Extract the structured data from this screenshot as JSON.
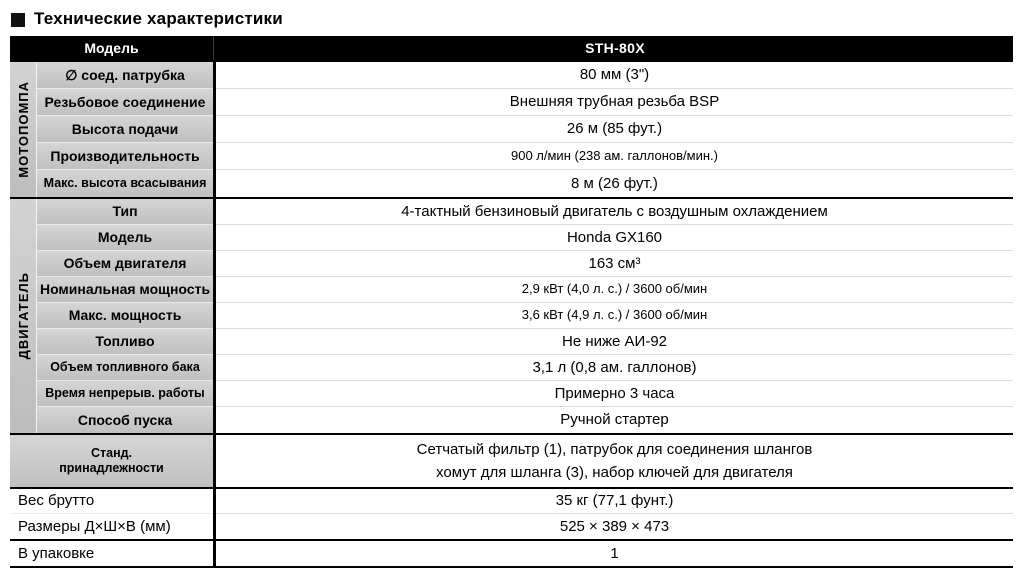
{
  "title": "Технические характеристики",
  "table": {
    "header": {
      "model_label": "Модель",
      "model_value": "STH-80X"
    },
    "sections": [
      {
        "group": "МОТОПОМПА",
        "rows": [
          {
            "label": "∅ соед. патрубка",
            "value": "80 мм (3\")"
          },
          {
            "label": "Резьбовое соединение",
            "value": "Внешняя трубная резьба BSP"
          },
          {
            "label": "Высота подачи",
            "value": "26 м (85 фут.)"
          },
          {
            "label": "Производительность",
            "value": "900 л/мин (238 ам. галлонов/мин.)",
            "small": true
          },
          {
            "label": "Макс. высота всасывания",
            "value": "8 м (26 фут.)"
          }
        ]
      },
      {
        "group": "ДВИГАТЕЛЬ",
        "rows": [
          {
            "label": "Тип",
            "value": "4-тактный бензиновый двигатель с воздушным охлаждением"
          },
          {
            "label": "Модель",
            "value": "Honda GX160"
          },
          {
            "label": "Объем двигателя",
            "value": "163 см³"
          },
          {
            "label": "Номинальная мощность",
            "value": "2,9 кВт (4,0 л. с.) / 3600 об/мин",
            "small": true
          },
          {
            "label": "Макс. мощность",
            "value": "3,6 кВт (4,9 л. с.) / 3600 об/мин",
            "small": true
          },
          {
            "label": "Топливо",
            "value": "Не ниже АИ-92"
          },
          {
            "label": "Объем топливного бака",
            "value": "3,1 л (0,8 ам. галлонов)"
          },
          {
            "label": "Время непрерыв. работы",
            "value": "Примерно 3 часа"
          },
          {
            "label": "Способ пуска",
            "value": "Ручной стартер"
          }
        ]
      },
      {
        "group": null,
        "rows": [
          {
            "label": [
              "Станд.",
              "принадлежности"
            ],
            "value": [
              "Сетчатый фильтр (1), патрубок для соединения шлангов",
              "хомут для шланга (3), набор ключей для двигателя"
            ],
            "tall": true
          }
        ]
      },
      {
        "group": null,
        "plain": true,
        "rows": [
          {
            "label": "Вес брутто",
            "value": "35 кг (77,1 фунт.)"
          },
          {
            "label": "Размеры Д×Ш×В (мм)",
            "value": "525 × 389 × 473"
          }
        ]
      },
      {
        "group": null,
        "plain": true,
        "rows": [
          {
            "label": "В упаковке",
            "value": "1"
          }
        ]
      }
    ]
  }
}
